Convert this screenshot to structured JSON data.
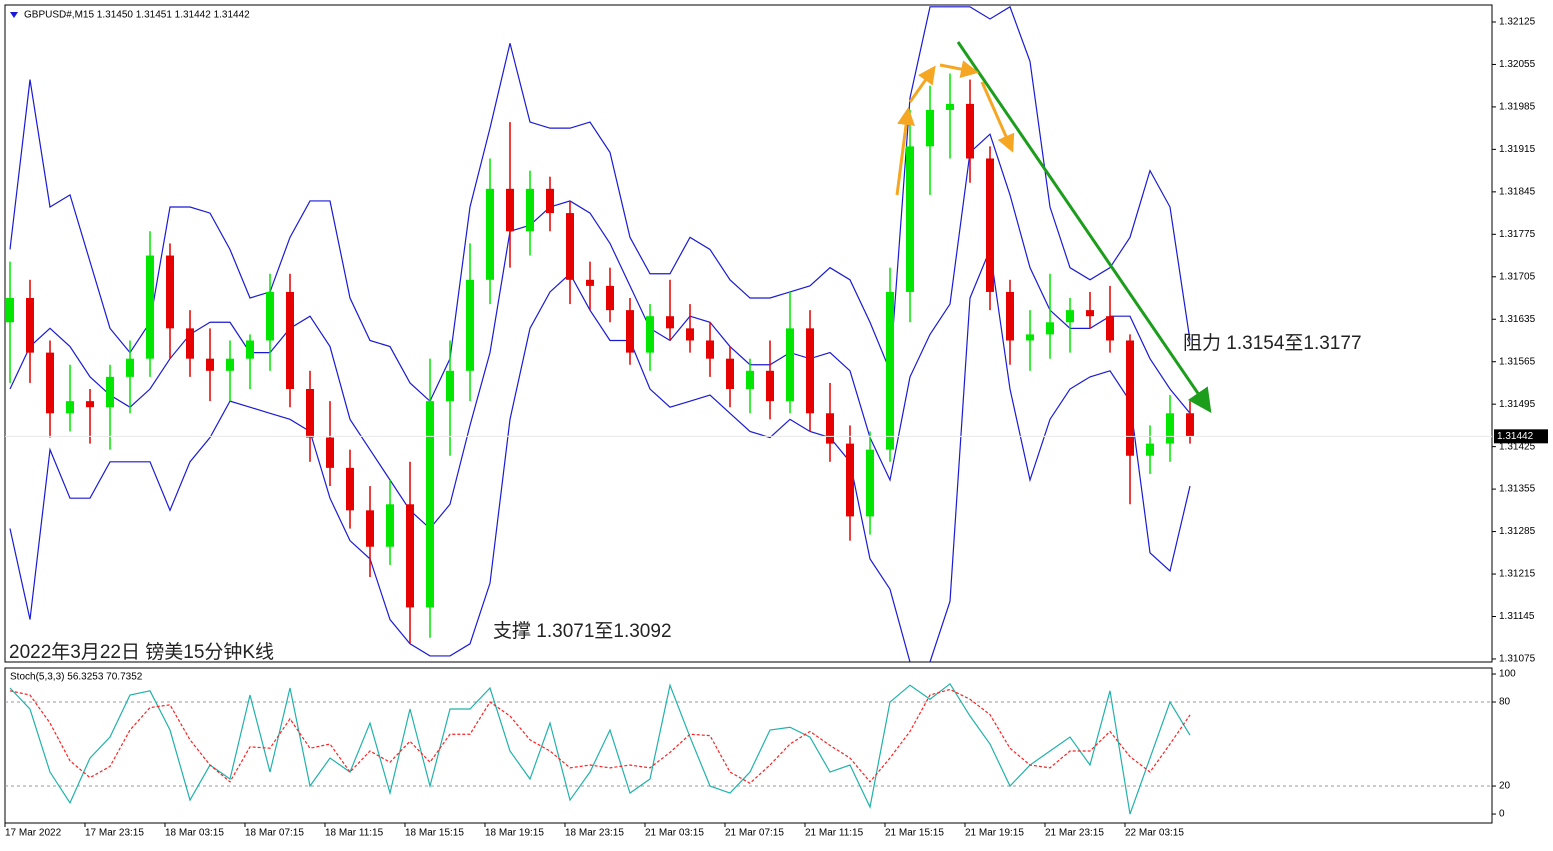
{
  "chart_data": [
    {
      "type": "candlestick",
      "title": "GBPUSD#,M15  1.31450 1.31451 1.31442 1.31442",
      "categories": [
        "17 Mar 2022",
        null,
        null,
        null,
        "17 Mar 23:15",
        null,
        null,
        null,
        "18 Mar 03:15",
        null,
        null,
        null,
        "18 Mar 07:15",
        null,
        null,
        null,
        "18 Mar 11:15",
        null,
        null,
        null,
        "18 Mar 15:15",
        null,
        null,
        null,
        "18 Mar 19:15",
        null,
        null,
        null,
        "18 Mar 23:15",
        null,
        null,
        null,
        "21 Mar 03:15",
        null,
        null,
        null,
        "21 Mar 07:15",
        null,
        null,
        null,
        "21 Mar 11:15",
        null,
        null,
        null,
        "21 Mar 15:15",
        null,
        null,
        null,
        "21 Mar 19:15",
        null,
        null,
        null,
        "21 Mar 23:15",
        null,
        null,
        null,
        "22 Mar 03:15",
        null,
        null,
        null
      ],
      "open": [
        1.3163,
        1.3167,
        1.3158,
        1.3148,
        1.315,
        1.3149,
        1.3154,
        1.3157,
        1.3174,
        1.3162,
        1.3157,
        1.3155,
        1.3157,
        1.316,
        1.3168,
        1.3152,
        1.3144,
        1.3139,
        1.3132,
        1.3126,
        1.3133,
        1.3116,
        1.315,
        1.3155,
        1.317,
        1.3185,
        1.3178,
        1.3185,
        1.3181,
        1.317,
        1.3169,
        1.3165,
        1.3158,
        1.3164,
        1.3162,
        1.316,
        1.3157,
        1.3152,
        1.3155,
        1.315,
        1.3162,
        1.3148,
        1.3143,
        1.3131,
        1.3142,
        1.3168,
        1.3192,
        1.3198,
        1.3199,
        1.319,
        1.3168,
        1.316,
        1.3161,
        1.3163,
        1.3165,
        1.3164,
        1.316,
        1.3141,
        1.3143,
        1.3148
      ],
      "high": [
        1.3173,
        1.317,
        1.316,
        1.3156,
        1.3152,
        1.3156,
        1.316,
        1.3178,
        1.3176,
        1.3165,
        1.3162,
        1.316,
        1.3161,
        1.3171,
        1.3171,
        1.3155,
        1.315,
        1.3142,
        1.3136,
        1.3137,
        1.314,
        1.3157,
        1.316,
        1.3176,
        1.319,
        1.3196,
        1.3188,
        1.3187,
        1.3183,
        1.3173,
        1.3172,
        1.3167,
        1.3166,
        1.317,
        1.3166,
        1.3163,
        1.3159,
        1.3157,
        1.316,
        1.3168,
        1.3165,
        1.3153,
        1.3146,
        1.3145,
        1.3172,
        1.3198,
        1.3202,
        1.3204,
        1.3203,
        1.3192,
        1.317,
        1.3165,
        1.3171,
        1.3167,
        1.3168,
        1.3169,
        1.3161,
        1.3146,
        1.3151,
        1.315
      ],
      "low": [
        1.3153,
        1.3153,
        1.3144,
        1.3145,
        1.3143,
        1.3142,
        1.3148,
        1.3154,
        1.3157,
        1.3154,
        1.315,
        1.315,
        1.3152,
        1.3155,
        1.3149,
        1.314,
        1.3136,
        1.3129,
        1.3121,
        1.3123,
        1.311,
        1.3111,
        1.3141,
        1.315,
        1.3166,
        1.3172,
        1.3174,
        1.3178,
        1.3166,
        1.3165,
        1.3163,
        1.3156,
        1.3155,
        1.316,
        1.3158,
        1.3154,
        1.3149,
        1.3148,
        1.3147,
        1.3148,
        1.3145,
        1.314,
        1.3127,
        1.3128,
        1.314,
        1.3163,
        1.3184,
        1.319,
        1.3186,
        1.3165,
        1.3156,
        1.3155,
        1.3157,
        1.3158,
        1.3162,
        1.3158,
        1.3133,
        1.3138,
        1.314,
        1.3143
      ],
      "close": [
        1.3167,
        1.3158,
        1.3148,
        1.315,
        1.3149,
        1.3154,
        1.3157,
        1.3174,
        1.3162,
        1.3157,
        1.3155,
        1.3157,
        1.316,
        1.3168,
        1.3152,
        1.3144,
        1.3139,
        1.3132,
        1.3126,
        1.3133,
        1.3116,
        1.315,
        1.3155,
        1.317,
        1.3185,
        1.3178,
        1.3185,
        1.3181,
        1.317,
        1.3169,
        1.3165,
        1.3158,
        1.3164,
        1.3162,
        1.316,
        1.3157,
        1.3152,
        1.3155,
        1.315,
        1.3162,
        1.3148,
        1.3143,
        1.3131,
        1.3142,
        1.3168,
        1.3192,
        1.3198,
        1.3199,
        1.319,
        1.3168,
        1.316,
        1.3161,
        1.3163,
        1.3165,
        1.3164,
        1.316,
        1.3141,
        1.3143,
        1.3148,
        1.31442
      ],
      "band_upper": [
        1.3175,
        1.3203,
        1.3182,
        1.3184,
        1.3173,
        1.3162,
        1.3158,
        1.3163,
        1.3182,
        1.3182,
        1.3181,
        1.3175,
        1.3167,
        1.3168,
        1.3177,
        1.3183,
        1.3183,
        1.3167,
        1.316,
        1.3159,
        1.3153,
        1.315,
        1.3157,
        1.3182,
        1.3195,
        1.3209,
        1.3196,
        1.3195,
        1.3195,
        1.3196,
        1.3191,
        1.3177,
        1.3171,
        1.3171,
        1.3177,
        1.3175,
        1.317,
        1.3167,
        1.3167,
        1.3168,
        1.3169,
        1.3172,
        1.317,
        1.3163,
        1.3155,
        1.32,
        1.3215,
        1.3215,
        1.3215,
        1.3213,
        1.3215,
        1.3206,
        1.3182,
        1.3172,
        1.317,
        1.3172,
        1.3177,
        1.3188,
        1.3182,
        1.316
      ],
      "band_middle": [
        1.3152,
        1.3159,
        1.3162,
        1.3159,
        1.3154,
        1.3151,
        1.3149,
        1.3152,
        1.3157,
        1.3161,
        1.3163,
        1.3163,
        1.3158,
        1.3158,
        1.3162,
        1.3164,
        1.3159,
        1.3147,
        1.3142,
        1.3137,
        1.3132,
        1.3129,
        1.3133,
        1.3146,
        1.3158,
        1.3178,
        1.3179,
        1.3182,
        1.3183,
        1.3181,
        1.3176,
        1.3169,
        1.3162,
        1.316,
        1.3164,
        1.3163,
        1.3159,
        1.3156,
        1.3156,
        1.3158,
        1.3157,
        1.3158,
        1.3155,
        1.3144,
        1.3137,
        1.3154,
        1.3161,
        1.3166,
        1.3191,
        1.3194,
        1.3184,
        1.3172,
        1.3165,
        1.3162,
        1.3162,
        1.3164,
        1.3164,
        1.3157,
        1.3152,
        1.3148
      ],
      "band_lower": [
        1.3129,
        1.3114,
        1.3142,
        1.3134,
        1.3134,
        1.314,
        1.314,
        1.314,
        1.3132,
        1.314,
        1.3144,
        1.315,
        1.3149,
        1.3148,
        1.3147,
        1.3145,
        1.3134,
        1.3127,
        1.3124,
        1.3114,
        1.311,
        1.3108,
        1.3108,
        1.311,
        1.312,
        1.3147,
        1.3162,
        1.3168,
        1.3171,
        1.3165,
        1.316,
        1.316,
        1.3152,
        1.3149,
        1.315,
        1.3151,
        1.3148,
        1.3145,
        1.3144,
        1.3147,
        1.3145,
        1.3144,
        1.314,
        1.3124,
        1.3119,
        1.3107,
        1.3107,
        1.3117,
        1.3167,
        1.3175,
        1.3152,
        1.3137,
        1.3147,
        1.3152,
        1.3154,
        1.3155,
        1.315,
        1.3125,
        1.3122,
        1.3136
      ],
      "up_color": "#00e600",
      "down_color": "#e60000",
      "band_color": "#1a1ad6",
      "ylim": [
        1.3107,
        1.32153
      ],
      "yticks": [
        1.32125,
        1.32055,
        1.31985,
        1.31915,
        1.31845,
        1.31775,
        1.31705,
        1.31635,
        1.31565,
        1.31495,
        1.31425,
        1.31355,
        1.31285,
        1.31215,
        1.31145,
        1.31075
      ],
      "last_price": 1.31442,
      "annotations": [
        "阻力 1.3154至1.3177",
        "支撑 1.3071至1.3092",
        "2022年3月22日 镑美15分钟K线"
      ]
    },
    {
      "type": "line",
      "title": "Stoch(5,3,3) 56.3253 70.7352",
      "series": [
        {
          "color": "#20b2aa",
          "dashed": false,
          "values": [
            90,
            75,
            30,
            8,
            40,
            55,
            85,
            88,
            60,
            10,
            35,
            25,
            85,
            30,
            90,
            20,
            40,
            30,
            65,
            15,
            75,
            20,
            75,
            75,
            90,
            45,
            25,
            65,
            10,
            30,
            60,
            15,
            25,
            92,
            55,
            20,
            15,
            30,
            60,
            62,
            55,
            30,
            35,
            5,
            80,
            92,
            82,
            93,
            70,
            50,
            20,
            35,
            45,
            55,
            35,
            88,
            0,
            40,
            80,
            56.3253
          ]
        },
        {
          "color": "#ff2020",
          "dashed": true,
          "values": [
            88,
            85,
            65,
            38,
            26,
            34,
            60,
            76,
            78,
            53,
            35,
            23,
            48,
            47,
            68,
            47,
            50,
            30,
            45,
            37,
            52,
            37,
            57,
            57,
            80,
            70,
            53,
            45,
            33,
            35,
            33,
            35,
            33,
            44,
            57,
            56,
            30,
            22,
            35,
            50,
            59,
            49,
            40,
            23,
            40,
            59,
            85,
            89,
            82,
            71,
            47,
            35,
            33,
            45,
            45,
            59,
            41,
            30,
            50,
            70.7352
          ]
        }
      ],
      "ylim": [
        -6.4,
        104.3
      ],
      "yticks": [
        100,
        80,
        20,
        0
      ],
      "levels": [
        80,
        20
      ]
    }
  ]
}
